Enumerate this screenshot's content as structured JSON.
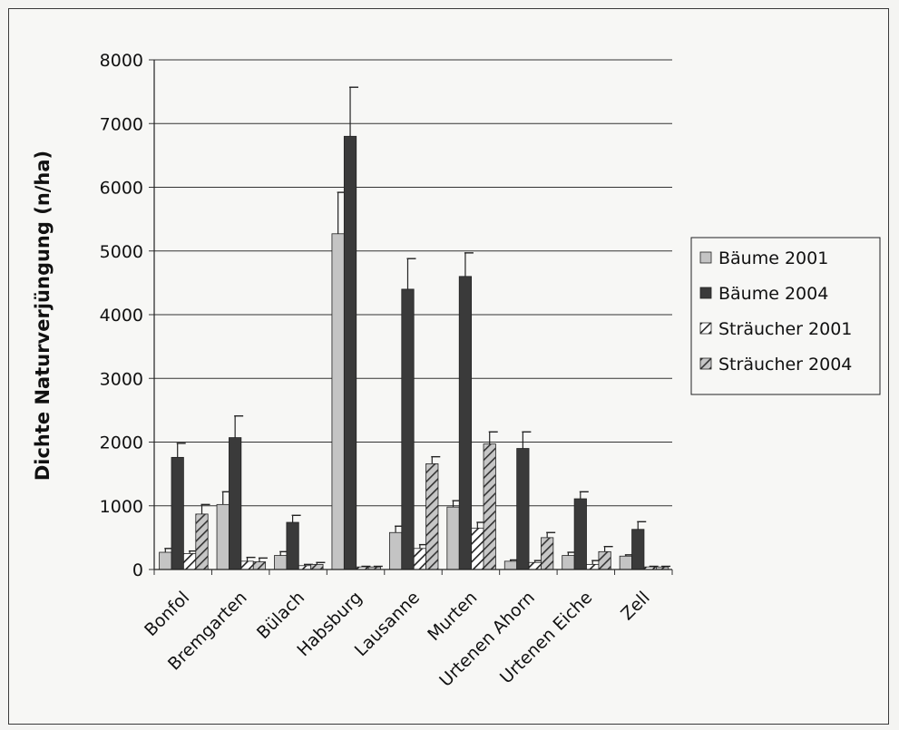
{
  "chart_data": {
    "type": "bar",
    "ylabel": "Dichte Naturverjüngung (n/ha)",
    "xlabel": "",
    "ylim": [
      0,
      8000
    ],
    "yticks": [
      0,
      1000,
      2000,
      3000,
      4000,
      5000,
      6000,
      7000,
      8000
    ],
    "grid": true,
    "legend_position": "right",
    "categories": [
      "Bonfol",
      "Bremgarten",
      "Bülach",
      "Habsburg",
      "Lausanne",
      "Murten",
      "Urtenen Ahorn",
      "Urtenen Eiche",
      "Zell"
    ],
    "series": [
      {
        "name": "Bäume 2001",
        "style": "light-gray",
        "color": "#c4c4c4",
        "values": [
          270,
          1020,
          220,
          5270,
          580,
          980,
          130,
          220,
          210
        ],
        "errors": [
          60,
          200,
          60,
          650,
          100,
          100,
          20,
          50,
          20
        ]
      },
      {
        "name": "Bäume 2004",
        "style": "dark",
        "color": "#3a3a3a",
        "values": [
          1760,
          2070,
          740,
          6800,
          4400,
          4600,
          1900,
          1110,
          630
        ],
        "errors": [
          220,
          340,
          110,
          770,
          480,
          370,
          260,
          110,
          120
        ]
      },
      {
        "name": "Sträucher 2001",
        "style": "white-hatched",
        "color": "#ffffff",
        "values": [
          250,
          130,
          60,
          40,
          330,
          650,
          110,
          80,
          40
        ],
        "errors": [
          40,
          60,
          20,
          10,
          60,
          90,
          30,
          60,
          10
        ]
      },
      {
        "name": "Sträucher 2004",
        "style": "gray-hatched",
        "color": "#bdbdbd",
        "values": [
          870,
          120,
          80,
          40,
          1660,
          1970,
          500,
          280,
          40
        ],
        "errors": [
          150,
          60,
          30,
          10,
          110,
          190,
          80,
          80,
          10
        ]
      }
    ]
  }
}
